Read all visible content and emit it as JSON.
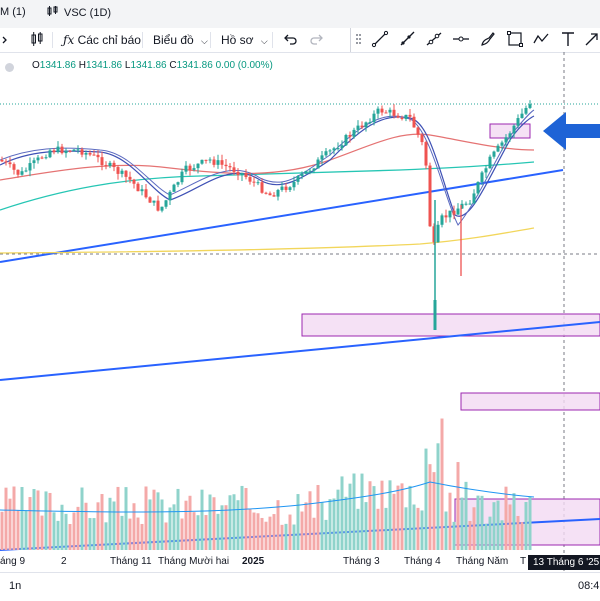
{
  "tabs": [
    {
      "label": "M (1)",
      "icon": "chart-candles-icon"
    },
    {
      "label": "VSC (1D)",
      "icon": "chart-candles-icon"
    }
  ],
  "toolbar": {
    "indicators_label": "Các chỉ báo",
    "chart_type_label": "Biểu đồ",
    "layout_label": "Hồ sơ"
  },
  "legend": {
    "open_key": "O",
    "open": "1341.86",
    "high_key": "H",
    "high": "1341.86",
    "low_key": "L",
    "low": "1341.86",
    "close_key": "C",
    "close": "1341.86",
    "change": "0.00 (0.00%)"
  },
  "x_axis": {
    "labels": [
      "áng 9",
      "2",
      "Tháng 11",
      "Tháng Mười hai",
      "2025",
      "Tháng 3",
      "Tháng 4",
      "Tháng Năm",
      "T"
    ],
    "crosshair_label": "13 Tháng 6 '25"
  },
  "bottom": {
    "interval": "1n",
    "time": "08:4"
  },
  "colors": {
    "up": "#26a69a",
    "down": "#ef5350",
    "trendline": "#2962ff",
    "zone_fill": "#f3d9f3",
    "zone_border": "#9c27b0",
    "arrow": "#1e63d6"
  }
}
